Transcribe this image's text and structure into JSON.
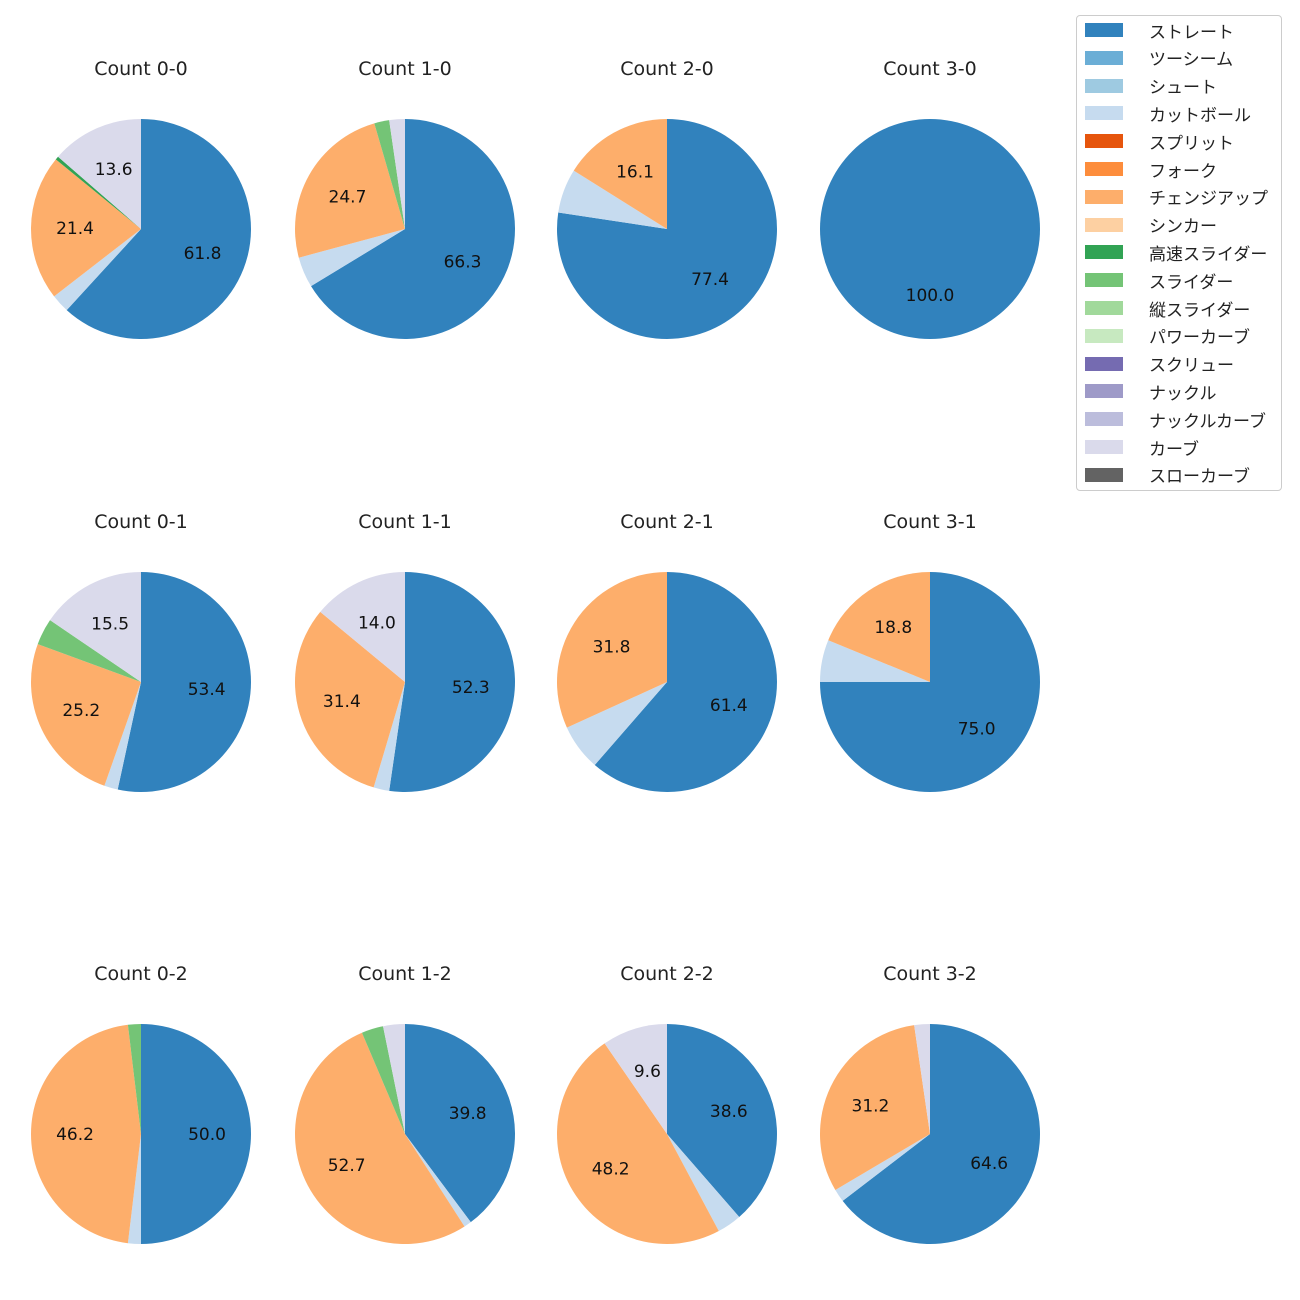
{
  "chart_data": {
    "type": "pie",
    "legend_position": "top-right",
    "categories": [
      "ストレート",
      "ツーシーム",
      "シュート",
      "カットボール",
      "スプリット",
      "フォーク",
      "チェンジアップ",
      "シンカー",
      "高速スライダー",
      "スライダー",
      "縦スライダー",
      "パワーカーブ",
      "スクリュー",
      "ナックル",
      "ナックルカーブ",
      "カーブ",
      "スローカーブ"
    ],
    "colors": [
      "#3182bd",
      "#6baed6",
      "#9ecae1",
      "#c6dbef",
      "#e6550d",
      "#fd8d3c",
      "#fdae6b",
      "#fdd0a2",
      "#31a354",
      "#74c476",
      "#a1d99b",
      "#c7e9c0",
      "#756bb1",
      "#9e9ac8",
      "#bcbddc",
      "#dadaeb",
      "#636363"
    ],
    "charts": [
      {
        "title": "Count 0-0",
        "slices": {
          "ストレート": 61.8,
          "カットボール": 2.7,
          "チェンジアップ": 21.4,
          "高速スライダー": 0.5,
          "カーブ": 13.6
        }
      },
      {
        "title": "Count 1-0",
        "slices": {
          "ストレート": 66.3,
          "カットボール": 4.5,
          "チェンジアップ": 24.7,
          "スライダー": 2.2,
          "カーブ": 2.3
        }
      },
      {
        "title": "Count 2-0",
        "slices": {
          "ストレート": 77.4,
          "カットボール": 6.5,
          "チェンジアップ": 16.1
        }
      },
      {
        "title": "Count 3-0",
        "slices": {
          "ストレート": 100.0
        }
      },
      {
        "title": "Count 0-1",
        "slices": {
          "ストレート": 53.4,
          "カットボール": 2.0,
          "チェンジアップ": 25.2,
          "スライダー": 3.9,
          "カーブ": 15.5
        }
      },
      {
        "title": "Count 1-1",
        "slices": {
          "ストレート": 52.3,
          "カットボール": 2.3,
          "チェンジアップ": 31.4,
          "カーブ": 14.0
        }
      },
      {
        "title": "Count 2-1",
        "slices": {
          "ストレート": 61.4,
          "カットボール": 6.8,
          "チェンジアップ": 31.8
        }
      },
      {
        "title": "Count 3-1",
        "slices": {
          "ストレート": 75.0,
          "カットボール": 6.2,
          "チェンジアップ": 18.8
        }
      },
      {
        "title": "Count 0-2",
        "slices": {
          "ストレート": 50.0,
          "カットボール": 1.9,
          "チェンジアップ": 46.2,
          "スライダー": 1.9
        }
      },
      {
        "title": "Count 1-2",
        "slices": {
          "ストレート": 39.8,
          "カットボール": 1.1,
          "チェンジアップ": 52.7,
          "スライダー": 3.2,
          "カーブ": 3.2
        }
      },
      {
        "title": "Count 2-2",
        "slices": {
          "ストレート": 38.6,
          "カットボール": 3.6,
          "チェンジアップ": 48.2,
          "カーブ": 9.6
        }
      },
      {
        "title": "Count 3-2",
        "slices": {
          "ストレート": 64.6,
          "カットボール": 1.9,
          "チェンジアップ": 31.2,
          "カーブ": 2.3
        }
      }
    ]
  }
}
